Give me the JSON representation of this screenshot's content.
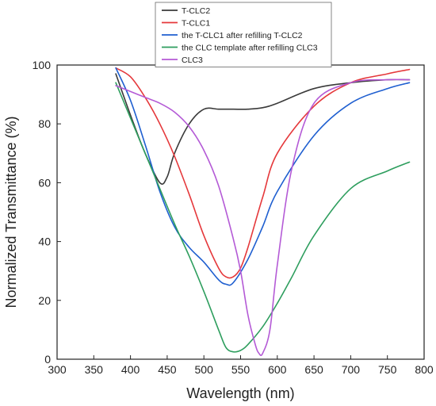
{
  "chart_data": {
    "type": "line",
    "title": "",
    "xlabel": "Wavelength  (nm)",
    "ylabel": "Normalized Transmittance  (%)",
    "xlim": [
      300,
      800
    ],
    "ylim": [
      0,
      100
    ],
    "xticks": [
      "300",
      "350",
      "400",
      "450",
      "500",
      "550",
      "600",
      "650",
      "700",
      "750",
      "800"
    ],
    "yticks": [
      "0",
      "20",
      "40",
      "60",
      "80",
      "100"
    ],
    "grid": false,
    "legend_position": "top",
    "series": [
      {
        "name": "T-CLC2",
        "color": "#3a3a3a",
        "x": [
          380,
          400,
          420,
          440,
          450,
          460,
          480,
          500,
          520,
          540,
          560,
          580,
          600,
          650,
          700,
          750,
          780
        ],
        "y": [
          97,
          83,
          70,
          60,
          62,
          70,
          80,
          85,
          85,
          85,
          85,
          85.5,
          87,
          92,
          94,
          95,
          95
        ]
      },
      {
        "name": "T-CLC1",
        "color": "#e5383b",
        "x": [
          380,
          400,
          420,
          440,
          460,
          480,
          500,
          520,
          530,
          540,
          550,
          560,
          580,
          600,
          650,
          700,
          750,
          780
        ],
        "y": [
          99,
          96,
          89,
          80,
          69,
          56,
          42,
          31,
          28,
          28,
          31,
          38,
          55,
          70,
          86,
          94,
          97,
          98.5
        ]
      },
      {
        "name": "the T-CLC1 after refilling T-CLC2",
        "color": "#1f5fd0",
        "x": [
          380,
          400,
          420,
          440,
          460,
          480,
          500,
          520,
          530,
          540,
          560,
          580,
          600,
          650,
          700,
          750,
          780
        ],
        "y": [
          99,
          88,
          73,
          57,
          45,
          38,
          33,
          27,
          25.5,
          26,
          34,
          45,
          57,
          76,
          87,
          92,
          94
        ]
      },
      {
        "name": "the CLC template after refilling CLC3",
        "color": "#2e9e5e",
        "x": [
          380,
          400,
          420,
          440,
          460,
          480,
          500,
          520,
          530,
          540,
          550,
          560,
          580,
          600,
          620,
          650,
          700,
          750,
          780
        ],
        "y": [
          94,
          82,
          70,
          58,
          46,
          35,
          23,
          10,
          4,
          2.5,
          3,
          5,
          11,
          19,
          28,
          42,
          58,
          64,
          67
        ]
      },
      {
        "name": "CLC3",
        "color": "#b45ad6",
        "x": [
          380,
          400,
          420,
          440,
          460,
          480,
          500,
          520,
          540,
          550,
          560,
          570,
          575,
          580,
          590,
          600,
          620,
          650,
          700,
          750,
          780
        ],
        "y": [
          93,
          91,
          89,
          87,
          84,
          79,
          71,
          59,
          41,
          30,
          15,
          5,
          2,
          2,
          10,
          32,
          65,
          87,
          94,
          95,
          95
        ]
      }
    ]
  }
}
